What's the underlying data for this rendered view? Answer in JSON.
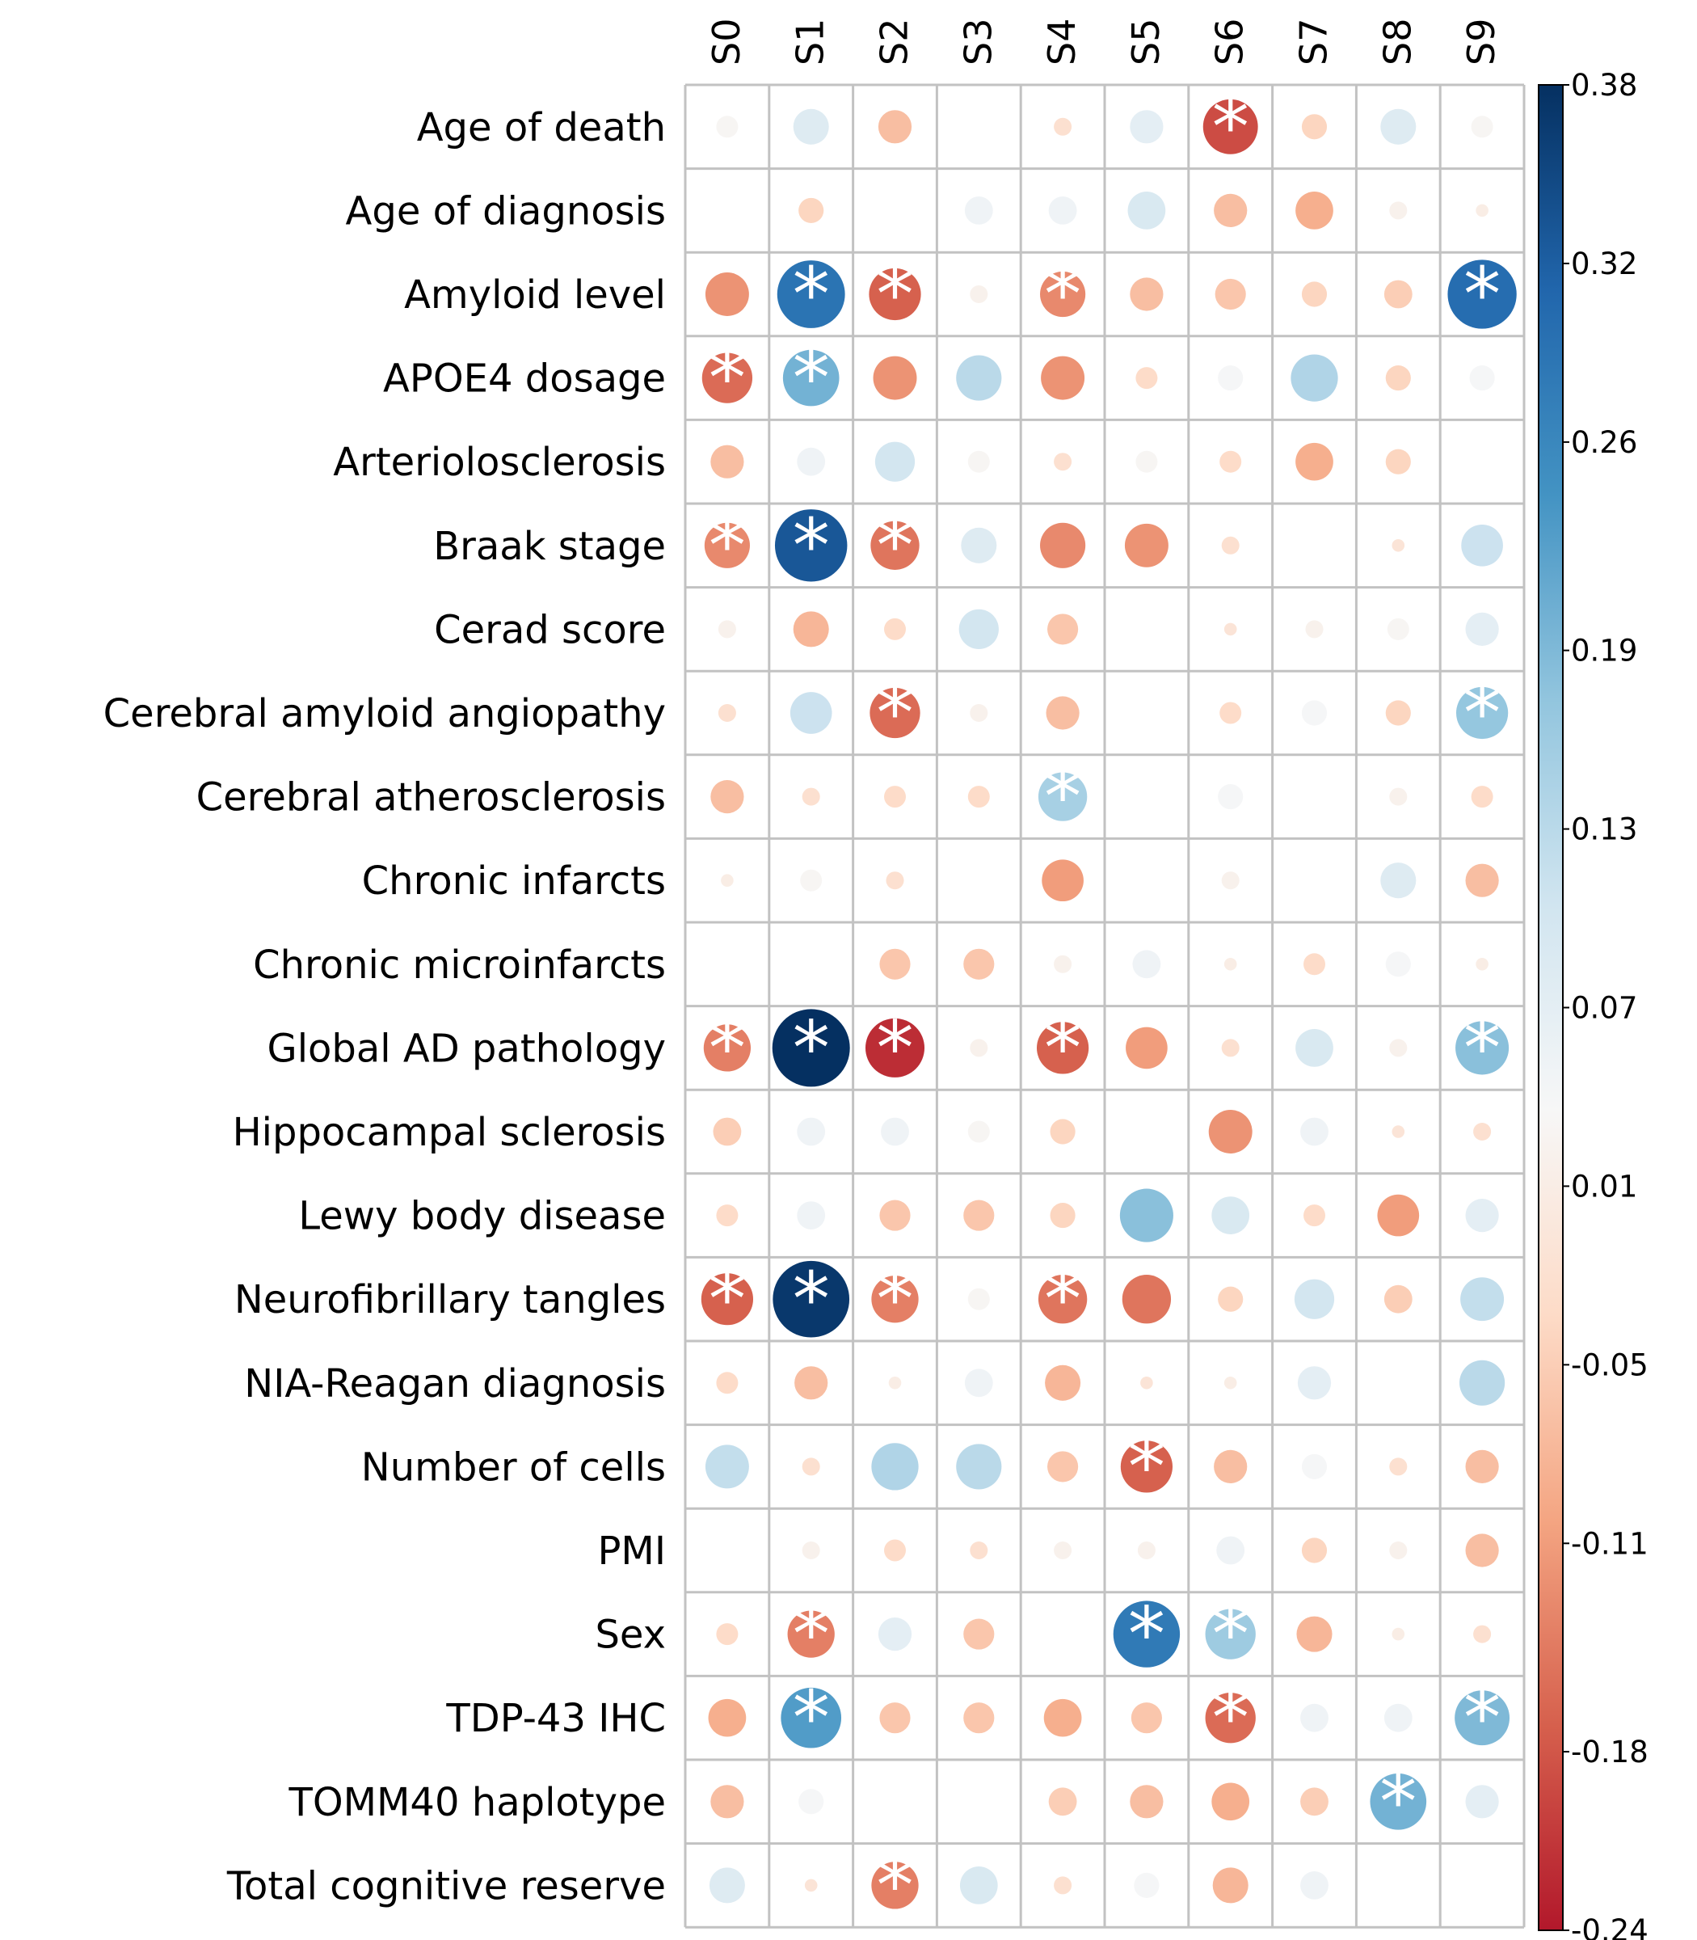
{
  "chart_data": {
    "type": "heatmap",
    "style": "circle-corrplot",
    "columns": [
      "S0",
      "S1",
      "S2",
      "S3",
      "S4",
      "S5",
      "S6",
      "S7",
      "S8",
      "S9"
    ],
    "rows": [
      "Age of death",
      "Age of diagnosis",
      "Amyloid level",
      "APOE4 dosage",
      "Arteriolosclerosis",
      "Braak stage",
      "Cerad score",
      "Cerebral amyloid angiopathy",
      "Cerebral atherosclerosis",
      "Chronic infarcts",
      "Chronic microinfarcts",
      "Global AD pathology",
      "Hippocampal sclerosis",
      "Lewy body disease",
      "Neurofibrillary tangles",
      "NIA-Reagan diagnosis",
      "Number of cells",
      "PMI",
      "Sex",
      "TDP-43 IHC",
      "TOMM40 haplotype",
      "Total cognitive reserve"
    ],
    "values": [
      [
        0.03,
        0.08,
        -0.07,
        0.0,
        -0.02,
        0.07,
        -0.19,
        -0.04,
        0.08,
        0.03
      ],
      [
        0.0,
        -0.04,
        0.0,
        0.05,
        0.05,
        0.09,
        -0.07,
        -0.09,
        0.02,
        0.01
      ],
      [
        -0.12,
        0.29,
        -0.17,
        0.02,
        -0.13,
        -0.07,
        -0.06,
        -0.04,
        -0.05,
        0.3
      ],
      [
        -0.16,
        0.2,
        -0.12,
        0.13,
        -0.12,
        -0.03,
        0.04,
        0.14,
        -0.04,
        0.04
      ],
      [
        -0.07,
        0.05,
        0.1,
        0.03,
        -0.02,
        0.03,
        -0.03,
        -0.09,
        -0.04,
        0.0
      ],
      [
        -0.13,
        0.33,
        -0.15,
        0.08,
        -0.13,
        -0.12,
        -0.02,
        0.0,
        -0.01,
        0.11
      ],
      [
        0.02,
        -0.08,
        -0.03,
        0.1,
        -0.06,
        0.0,
        -0.01,
        0.02,
        0.03,
        0.07
      ],
      [
        -0.02,
        0.11,
        -0.16,
        0.02,
        -0.07,
        0.0,
        -0.03,
        0.04,
        -0.04,
        0.17
      ],
      [
        -0.07,
        -0.02,
        -0.03,
        -0.03,
        0.15,
        0.0,
        0.04,
        0.0,
        0.02,
        -0.03
      ],
      [
        0.01,
        0.03,
        -0.02,
        0.0,
        -0.11,
        0.0,
        0.02,
        0.0,
        0.08,
        -0.07
      ],
      [
        0.0,
        0.0,
        -0.06,
        -0.06,
        0.02,
        0.05,
        0.01,
        -0.03,
        0.04,
        0.01
      ],
      [
        -0.14,
        0.38,
        -0.22,
        0.02,
        -0.17,
        -0.11,
        -0.02,
        0.09,
        0.02,
        0.18
      ],
      [
        -0.05,
        0.05,
        0.05,
        0.03,
        -0.04,
        0.0,
        -0.12,
        0.05,
        -0.01,
        -0.02
      ],
      [
        -0.03,
        0.05,
        -0.06,
        -0.06,
        -0.04,
        0.18,
        0.09,
        -0.03,
        -0.11,
        0.07
      ],
      [
        -0.17,
        0.37,
        -0.14,
        0.03,
        -0.15,
        -0.15,
        -0.04,
        0.1,
        -0.05,
        0.12
      ],
      [
        -0.03,
        -0.07,
        0.01,
        0.05,
        -0.08,
        -0.01,
        0.01,
        0.07,
        0.0,
        0.13
      ],
      [
        0.12,
        -0.02,
        0.14,
        0.13,
        -0.06,
        -0.17,
        -0.07,
        0.04,
        -0.02,
        -0.07
      ],
      [
        0.0,
        0.02,
        -0.03,
        -0.02,
        0.02,
        0.02,
        0.05,
        -0.04,
        0.02,
        -0.07
      ],
      [
        -0.03,
        -0.14,
        0.07,
        -0.06,
        0.0,
        0.28,
        0.16,
        -0.08,
        0.01,
        -0.02
      ],
      [
        -0.09,
        0.23,
        -0.06,
        -0.06,
        -0.09,
        -0.06,
        -0.16,
        0.05,
        0.05,
        0.19
      ],
      [
        -0.07,
        0.04,
        0.0,
        0.0,
        -0.05,
        -0.07,
        -0.09,
        -0.05,
        0.2,
        0.07
      ],
      [
        0.08,
        -0.01,
        -0.14,
        0.09,
        -0.02,
        0.04,
        -0.08,
        0.05,
        0.0,
        0.0
      ]
    ],
    "significant": [
      [
        6,
        0
      ],
      [
        1,
        2
      ],
      [
        2,
        2
      ],
      [
        4,
        2
      ],
      [
        9,
        2
      ],
      [
        0,
        3
      ],
      [
        1,
        3
      ],
      [
        0,
        5
      ],
      [
        1,
        5
      ],
      [
        2,
        5
      ],
      [
        2,
        7
      ],
      [
        9,
        7
      ],
      [
        4,
        8
      ],
      [
        0,
        11
      ],
      [
        1,
        11
      ],
      [
        2,
        11
      ],
      [
        4,
        11
      ],
      [
        9,
        11
      ],
      [
        0,
        14
      ],
      [
        1,
        14
      ],
      [
        2,
        14
      ],
      [
        4,
        14
      ],
      [
        5,
        16
      ],
      [
        1,
        18
      ],
      [
        5,
        18
      ],
      [
        6,
        18
      ],
      [
        1,
        19
      ],
      [
        6,
        19
      ],
      [
        9,
        19
      ],
      [
        8,
        20
      ],
      [
        2,
        21
      ]
    ],
    "significance_marker": "*",
    "colorbar": {
      "min": -0.24,
      "max": 0.38,
      "ticks": [
        "0.38",
        "0.32",
        "0.26",
        "0.19",
        "0.13",
        "0.07",
        "0.01",
        "-0.05",
        "-0.11",
        "-0.18",
        "-0.24"
      ],
      "tick_values": [
        0.38,
        0.32,
        0.26,
        0.19,
        0.13,
        0.07,
        0.01,
        -0.05,
        -0.11,
        -0.18,
        -0.24
      ]
    },
    "colormap": [
      "#b2182b",
      "#d6604d",
      "#f4a582",
      "#fddbc7",
      "#f7f7f7",
      "#d1e5f0",
      "#92c5de",
      "#4393c3",
      "#2166ac",
      "#053061"
    ],
    "grid": true,
    "legend": "colorbar-right"
  }
}
